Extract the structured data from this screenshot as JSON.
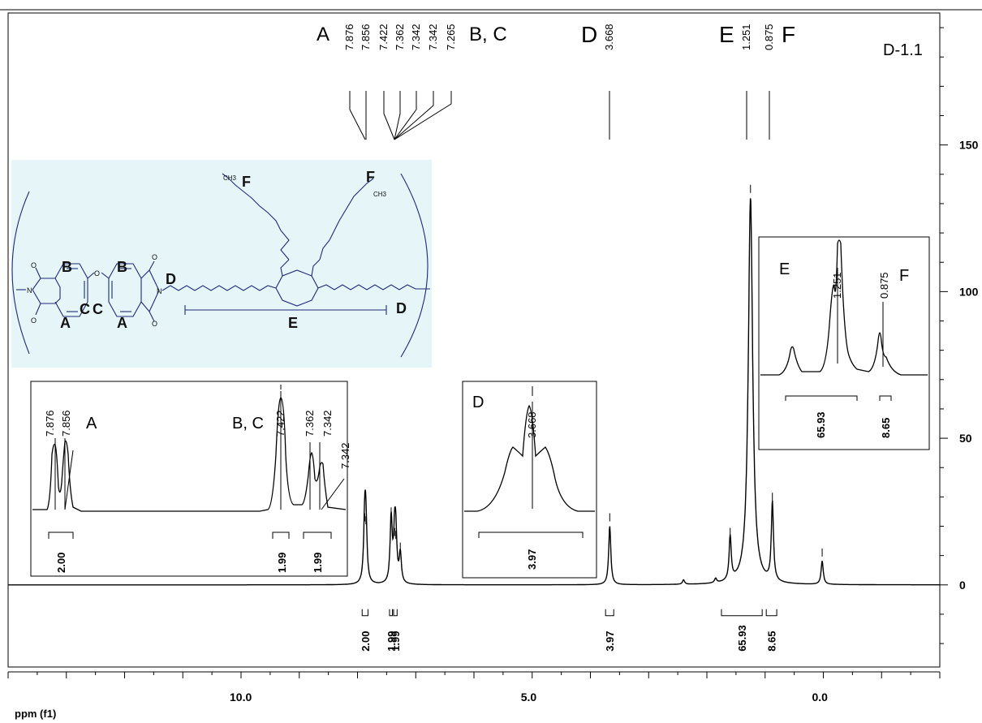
{
  "chart_data": {
    "type": "line",
    "sample_id": "D-1.1",
    "xlabel": "ppm (f1)",
    "x_ticks": [
      "10.0",
      "5.0",
      "0.0"
    ],
    "xlim": [
      14.0,
      -2.0
    ],
    "y_ticks": [
      "0",
      "50",
      "100",
      "150"
    ],
    "ylim": [
      -28,
      195
    ],
    "x_reversed": true,
    "peak_groups": [
      {
        "label": "A",
        "peaks": [
          "7.876",
          "7.856"
        ]
      },
      {
        "label": "B, C",
        "peaks": [
          "7.422",
          "7.362",
          "7.342",
          "7.342",
          "7.265"
        ]
      },
      {
        "label": "D",
        "peaks": [
          "3.668"
        ]
      },
      {
        "label": "E",
        "peaks": [
          "1.251"
        ]
      },
      {
        "label": "F",
        "peaks": [
          "0.875"
        ]
      }
    ],
    "peaks": [
      {
        "ppm": 7.876,
        "height": 20
      },
      {
        "ppm": 7.856,
        "height": 19
      },
      {
        "ppm": 7.422,
        "height": 22
      },
      {
        "ppm": 7.362,
        "height": 15
      },
      {
        "ppm": 7.342,
        "height": 14
      },
      {
        "ppm": 7.265,
        "height": 10
      },
      {
        "ppm": 3.668,
        "height": 20
      },
      {
        "ppm": 2.4,
        "height": 1.5
      },
      {
        "ppm": 1.85,
        "height": 1.5
      },
      {
        "ppm": 1.6,
        "height": 15
      },
      {
        "ppm": 1.251,
        "height": 132
      },
      {
        "ppm": 0.875,
        "height": 27
      },
      {
        "ppm": 0.02,
        "height": 8
      }
    ],
    "integrals": [
      {
        "value": "2.00",
        "from": 7.92,
        "to": 7.82
      },
      {
        "value": "1.99",
        "from": 7.45,
        "to": 7.4
      },
      {
        "value": "1.99",
        "from": 7.38,
        "to": 7.32
      },
      {
        "value": "3.97",
        "from": 3.74,
        "to": 3.6
      },
      {
        "value": "65.93",
        "from": 1.75,
        "to": 1.05
      },
      {
        "value": "8.65",
        "from": 0.98,
        "to": 0.8
      }
    ],
    "insets": [
      {
        "name": "A / B, C region",
        "labels": [
          "A",
          "B, C"
        ],
        "peaks": [
          "7.876",
          "7.856",
          "7.422",
          "7.362",
          "7.342",
          "7.342"
        ],
        "integrals": [
          "2.00",
          "1.99",
          "1.99"
        ]
      },
      {
        "name": "D region",
        "labels": [
          "D"
        ],
        "peaks": [
          "3.668"
        ],
        "integrals": [
          "3.97"
        ]
      },
      {
        "name": "E / F region",
        "labels": [
          "E",
          "F"
        ],
        "peaks": [
          "1.251",
          "0.875"
        ],
        "integrals": [
          "65.93",
          "8.65"
        ]
      }
    ]
  },
  "structure": {
    "labels": {
      "a": "A",
      "b": "B",
      "c": "C",
      "d": "D",
      "e": "E",
      "f": "F"
    },
    "ch3": "CH3",
    "o": "O",
    "n": "N"
  },
  "colors": {
    "structure_bg": "#e6f6f8",
    "structure_line": "#1e2a78",
    "spectrum": "#000000"
  }
}
